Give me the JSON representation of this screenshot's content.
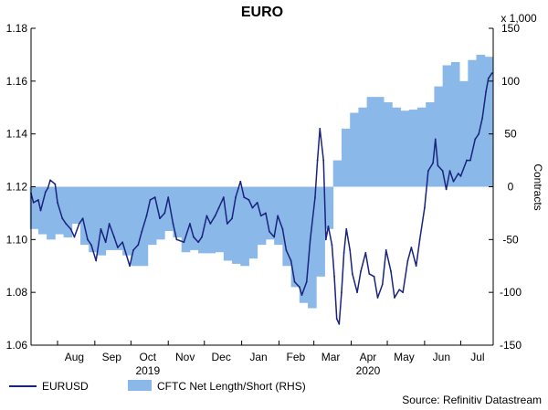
{
  "chart_data": {
    "type": "line",
    "title": "EURO",
    "left_axis": {
      "min": 1.06,
      "max": 1.18,
      "ticks": [
        "1.06",
        "1.08",
        "1.10",
        "1.12",
        "1.14",
        "1.16",
        "1.18"
      ]
    },
    "right_axis": {
      "min": -150,
      "max": 150,
      "ticks": [
        "-150",
        "-100",
        "-50",
        "0",
        "50",
        "100",
        "150"
      ],
      "unit_label": "x 1,000",
      "label": "Contracts"
    },
    "x_axis": {
      "start": "2019-07-10",
      "end": "2020-07-28",
      "months": [
        {
          "label": "Aug",
          "date": "2019-08-15"
        },
        {
          "label": "Sep",
          "date": "2019-09-15"
        },
        {
          "label": "Oct",
          "date": "2019-10-15"
        },
        {
          "label": "Nov",
          "date": "2019-11-15"
        },
        {
          "label": "Dec",
          "date": "2019-12-15"
        },
        {
          "label": "Jan",
          "date": "2020-01-15"
        },
        {
          "label": "Feb",
          "date": "2020-02-15"
        },
        {
          "label": "Mar",
          "date": "2020-03-15"
        },
        {
          "label": "Apr",
          "date": "2020-04-15"
        },
        {
          "label": "May",
          "date": "2020-05-15"
        },
        {
          "label": "Jun",
          "date": "2020-06-15"
        },
        {
          "label": "Jul",
          "date": "2020-07-15"
        }
      ],
      "years": [
        {
          "label": "2019",
          "date": "2019-10-15"
        },
        {
          "label": "2020",
          "date": "2020-04-15"
        }
      ]
    },
    "grid": false,
    "legend_position": "bottom-left",
    "source": "Source: Refinitiv Datastream",
    "series": [
      {
        "name": "EURUSD",
        "axis": "left",
        "color": "#1a237e",
        "points": [
          [
            "2019-07-10",
            1.1175
          ],
          [
            "2019-07-12",
            1.114
          ],
          [
            "2019-07-16",
            1.115
          ],
          [
            "2019-07-18",
            1.111
          ],
          [
            "2019-07-22",
            1.118
          ],
          [
            "2019-07-24",
            1.1195
          ],
          [
            "2019-07-26",
            1.1225
          ],
          [
            "2019-07-30",
            1.121
          ],
          [
            "2019-08-01",
            1.114
          ],
          [
            "2019-08-05",
            1.108
          ],
          [
            "2019-08-08",
            1.106
          ],
          [
            "2019-08-12",
            1.104
          ],
          [
            "2019-08-15",
            1.101
          ],
          [
            "2019-08-19",
            1.106
          ],
          [
            "2019-08-22",
            1.108
          ],
          [
            "2019-08-26",
            1.1
          ],
          [
            "2019-08-29",
            1.098
          ],
          [
            "2019-09-02",
            1.092
          ],
          [
            "2019-09-06",
            1.104
          ],
          [
            "2019-09-10",
            1.099
          ],
          [
            "2019-09-13",
            1.106
          ],
          [
            "2019-09-17",
            1.101
          ],
          [
            "2019-09-20",
            1.097
          ],
          [
            "2019-09-24",
            1.099
          ],
          [
            "2019-09-30",
            1.09
          ],
          [
            "2019-10-03",
            1.096
          ],
          [
            "2019-10-07",
            1.098
          ],
          [
            "2019-10-10",
            1.103
          ],
          [
            "2019-10-14",
            1.109
          ],
          [
            "2019-10-17",
            1.115
          ],
          [
            "2019-10-21",
            1.116
          ],
          [
            "2019-10-25",
            1.108
          ],
          [
            "2019-10-29",
            1.11
          ],
          [
            "2019-11-01",
            1.116
          ],
          [
            "2019-11-05",
            1.106
          ],
          [
            "2019-11-08",
            1.1
          ],
          [
            "2019-11-14",
            1.099
          ],
          [
            "2019-11-19",
            1.106
          ],
          [
            "2019-11-22",
            1.101
          ],
          [
            "2019-11-26",
            1.099
          ],
          [
            "2019-11-29",
            1.101
          ],
          [
            "2019-12-03",
            1.109
          ],
          [
            "2019-12-06",
            1.106
          ],
          [
            "2019-12-10",
            1.109
          ],
          [
            "2019-12-13",
            1.112
          ],
          [
            "2019-12-17",
            1.116
          ],
          [
            "2019-12-20",
            1.106
          ],
          [
            "2019-12-24",
            1.108
          ],
          [
            "2019-12-27",
            1.116
          ],
          [
            "2019-12-31",
            1.122
          ],
          [
            "2020-01-03",
            1.116
          ],
          [
            "2020-01-07",
            1.115
          ],
          [
            "2020-01-10",
            1.112
          ],
          [
            "2020-01-14",
            1.114
          ],
          [
            "2020-01-17",
            1.109
          ],
          [
            "2020-01-21",
            1.11
          ],
          [
            "2020-01-24",
            1.103
          ],
          [
            "2020-01-28",
            1.101
          ],
          [
            "2020-01-31",
            1.109
          ],
          [
            "2020-02-04",
            1.104
          ],
          [
            "2020-02-07",
            1.096
          ],
          [
            "2020-02-11",
            1.092
          ],
          [
            "2020-02-14",
            1.084
          ],
          [
            "2020-02-18",
            1.082
          ],
          [
            "2020-02-20",
            1.079
          ],
          [
            "2020-02-24",
            1.084
          ],
          [
            "2020-02-27",
            1.1
          ],
          [
            "2020-03-02",
            1.116
          ],
          [
            "2020-03-04",
            1.13
          ],
          [
            "2020-03-06",
            1.142
          ],
          [
            "2020-03-09",
            1.13
          ],
          [
            "2020-03-11",
            1.1
          ],
          [
            "2020-03-13",
            1.105
          ],
          [
            "2020-03-16",
            1.098
          ],
          [
            "2020-03-18",
            1.086
          ],
          [
            "2020-03-20",
            1.07
          ],
          [
            "2020-03-22",
            1.068
          ],
          [
            "2020-03-24",
            1.08
          ],
          [
            "2020-03-26",
            1.095
          ],
          [
            "2020-03-28",
            1.104
          ],
          [
            "2020-03-31",
            1.096
          ],
          [
            "2020-04-02",
            1.087
          ],
          [
            "2020-04-06",
            1.08
          ],
          [
            "2020-04-09",
            1.088
          ],
          [
            "2020-04-13",
            1.095
          ],
          [
            "2020-04-16",
            1.087
          ],
          [
            "2020-04-20",
            1.086
          ],
          [
            "2020-04-23",
            1.078
          ],
          [
            "2020-04-27",
            1.083
          ],
          [
            "2020-04-30",
            1.096
          ],
          [
            "2020-05-04",
            1.088
          ],
          [
            "2020-05-07",
            1.078
          ],
          [
            "2020-05-11",
            1.081
          ],
          [
            "2020-05-14",
            1.08
          ],
          [
            "2020-05-18",
            1.092
          ],
          [
            "2020-05-21",
            1.097
          ],
          [
            "2020-05-25",
            1.09
          ],
          [
            "2020-05-28",
            1.1
          ],
          [
            "2020-06-01",
            1.112
          ],
          [
            "2020-06-04",
            1.126
          ],
          [
            "2020-06-08",
            1.129
          ],
          [
            "2020-06-10",
            1.138
          ],
          [
            "2020-06-12",
            1.128
          ],
          [
            "2020-06-16",
            1.126
          ],
          [
            "2020-06-19",
            1.119
          ],
          [
            "2020-06-22",
            1.126
          ],
          [
            "2020-06-25",
            1.122
          ],
          [
            "2020-06-29",
            1.125
          ],
          [
            "2020-07-01",
            1.124
          ],
          [
            "2020-07-06",
            1.13
          ],
          [
            "2020-07-09",
            1.13
          ],
          [
            "2020-07-13",
            1.138
          ],
          [
            "2020-07-16",
            1.14
          ],
          [
            "2020-07-19",
            1.146
          ],
          [
            "2020-07-22",
            1.156
          ],
          [
            "2020-07-24",
            1.161
          ],
          [
            "2020-07-27",
            1.163
          ]
        ]
      },
      {
        "name": "CFTC Net Length/Short (RHS)",
        "axis": "right",
        "color": "#8ab8e8",
        "points": [
          [
            "2019-07-09",
            -40
          ],
          [
            "2019-07-16",
            -45
          ],
          [
            "2019-07-23",
            -50
          ],
          [
            "2019-07-30",
            -45
          ],
          [
            "2019-08-06",
            -48
          ],
          [
            "2019-08-13",
            -35
          ],
          [
            "2019-08-20",
            -55
          ],
          [
            "2019-08-27",
            -62
          ],
          [
            "2019-09-03",
            -65
          ],
          [
            "2019-09-10",
            -60
          ],
          [
            "2019-09-17",
            -60
          ],
          [
            "2019-09-24",
            -65
          ],
          [
            "2019-10-01",
            -75
          ],
          [
            "2019-10-08",
            -75
          ],
          [
            "2019-10-15",
            -55
          ],
          [
            "2019-10-22",
            -50
          ],
          [
            "2019-10-29",
            -42
          ],
          [
            "2019-11-05",
            -48
          ],
          [
            "2019-11-12",
            -62
          ],
          [
            "2019-11-19",
            -60
          ],
          [
            "2019-11-26",
            -63
          ],
          [
            "2019-12-03",
            -63
          ],
          [
            "2019-12-10",
            -62
          ],
          [
            "2019-12-17",
            -70
          ],
          [
            "2019-12-24",
            -73
          ],
          [
            "2019-12-31",
            -75
          ],
          [
            "2020-01-07",
            -68
          ],
          [
            "2020-01-14",
            -55
          ],
          [
            "2020-01-21",
            -50
          ],
          [
            "2020-01-28",
            -55
          ],
          [
            "2020-02-04",
            -75
          ],
          [
            "2020-02-11",
            -95
          ],
          [
            "2020-02-18",
            -110
          ],
          [
            "2020-02-25",
            -115
          ],
          [
            "2020-03-03",
            -85
          ],
          [
            "2020-03-10",
            -40
          ],
          [
            "2020-03-17",
            25
          ],
          [
            "2020-03-24",
            55
          ],
          [
            "2020-03-31",
            70
          ],
          [
            "2020-04-07",
            75
          ],
          [
            "2020-04-14",
            85
          ],
          [
            "2020-04-21",
            85
          ],
          [
            "2020-04-28",
            80
          ],
          [
            "2020-05-05",
            75
          ],
          [
            "2020-05-12",
            72
          ],
          [
            "2020-05-19",
            73
          ],
          [
            "2020-05-26",
            75
          ],
          [
            "2020-06-02",
            80
          ],
          [
            "2020-06-09",
            95
          ],
          [
            "2020-06-16",
            115
          ],
          [
            "2020-06-23",
            118
          ],
          [
            "2020-06-30",
            100
          ],
          [
            "2020-07-07",
            120
          ],
          [
            "2020-07-14",
            125
          ],
          [
            "2020-07-21",
            123
          ],
          [
            "2020-07-28",
            123
          ]
        ]
      }
    ]
  }
}
